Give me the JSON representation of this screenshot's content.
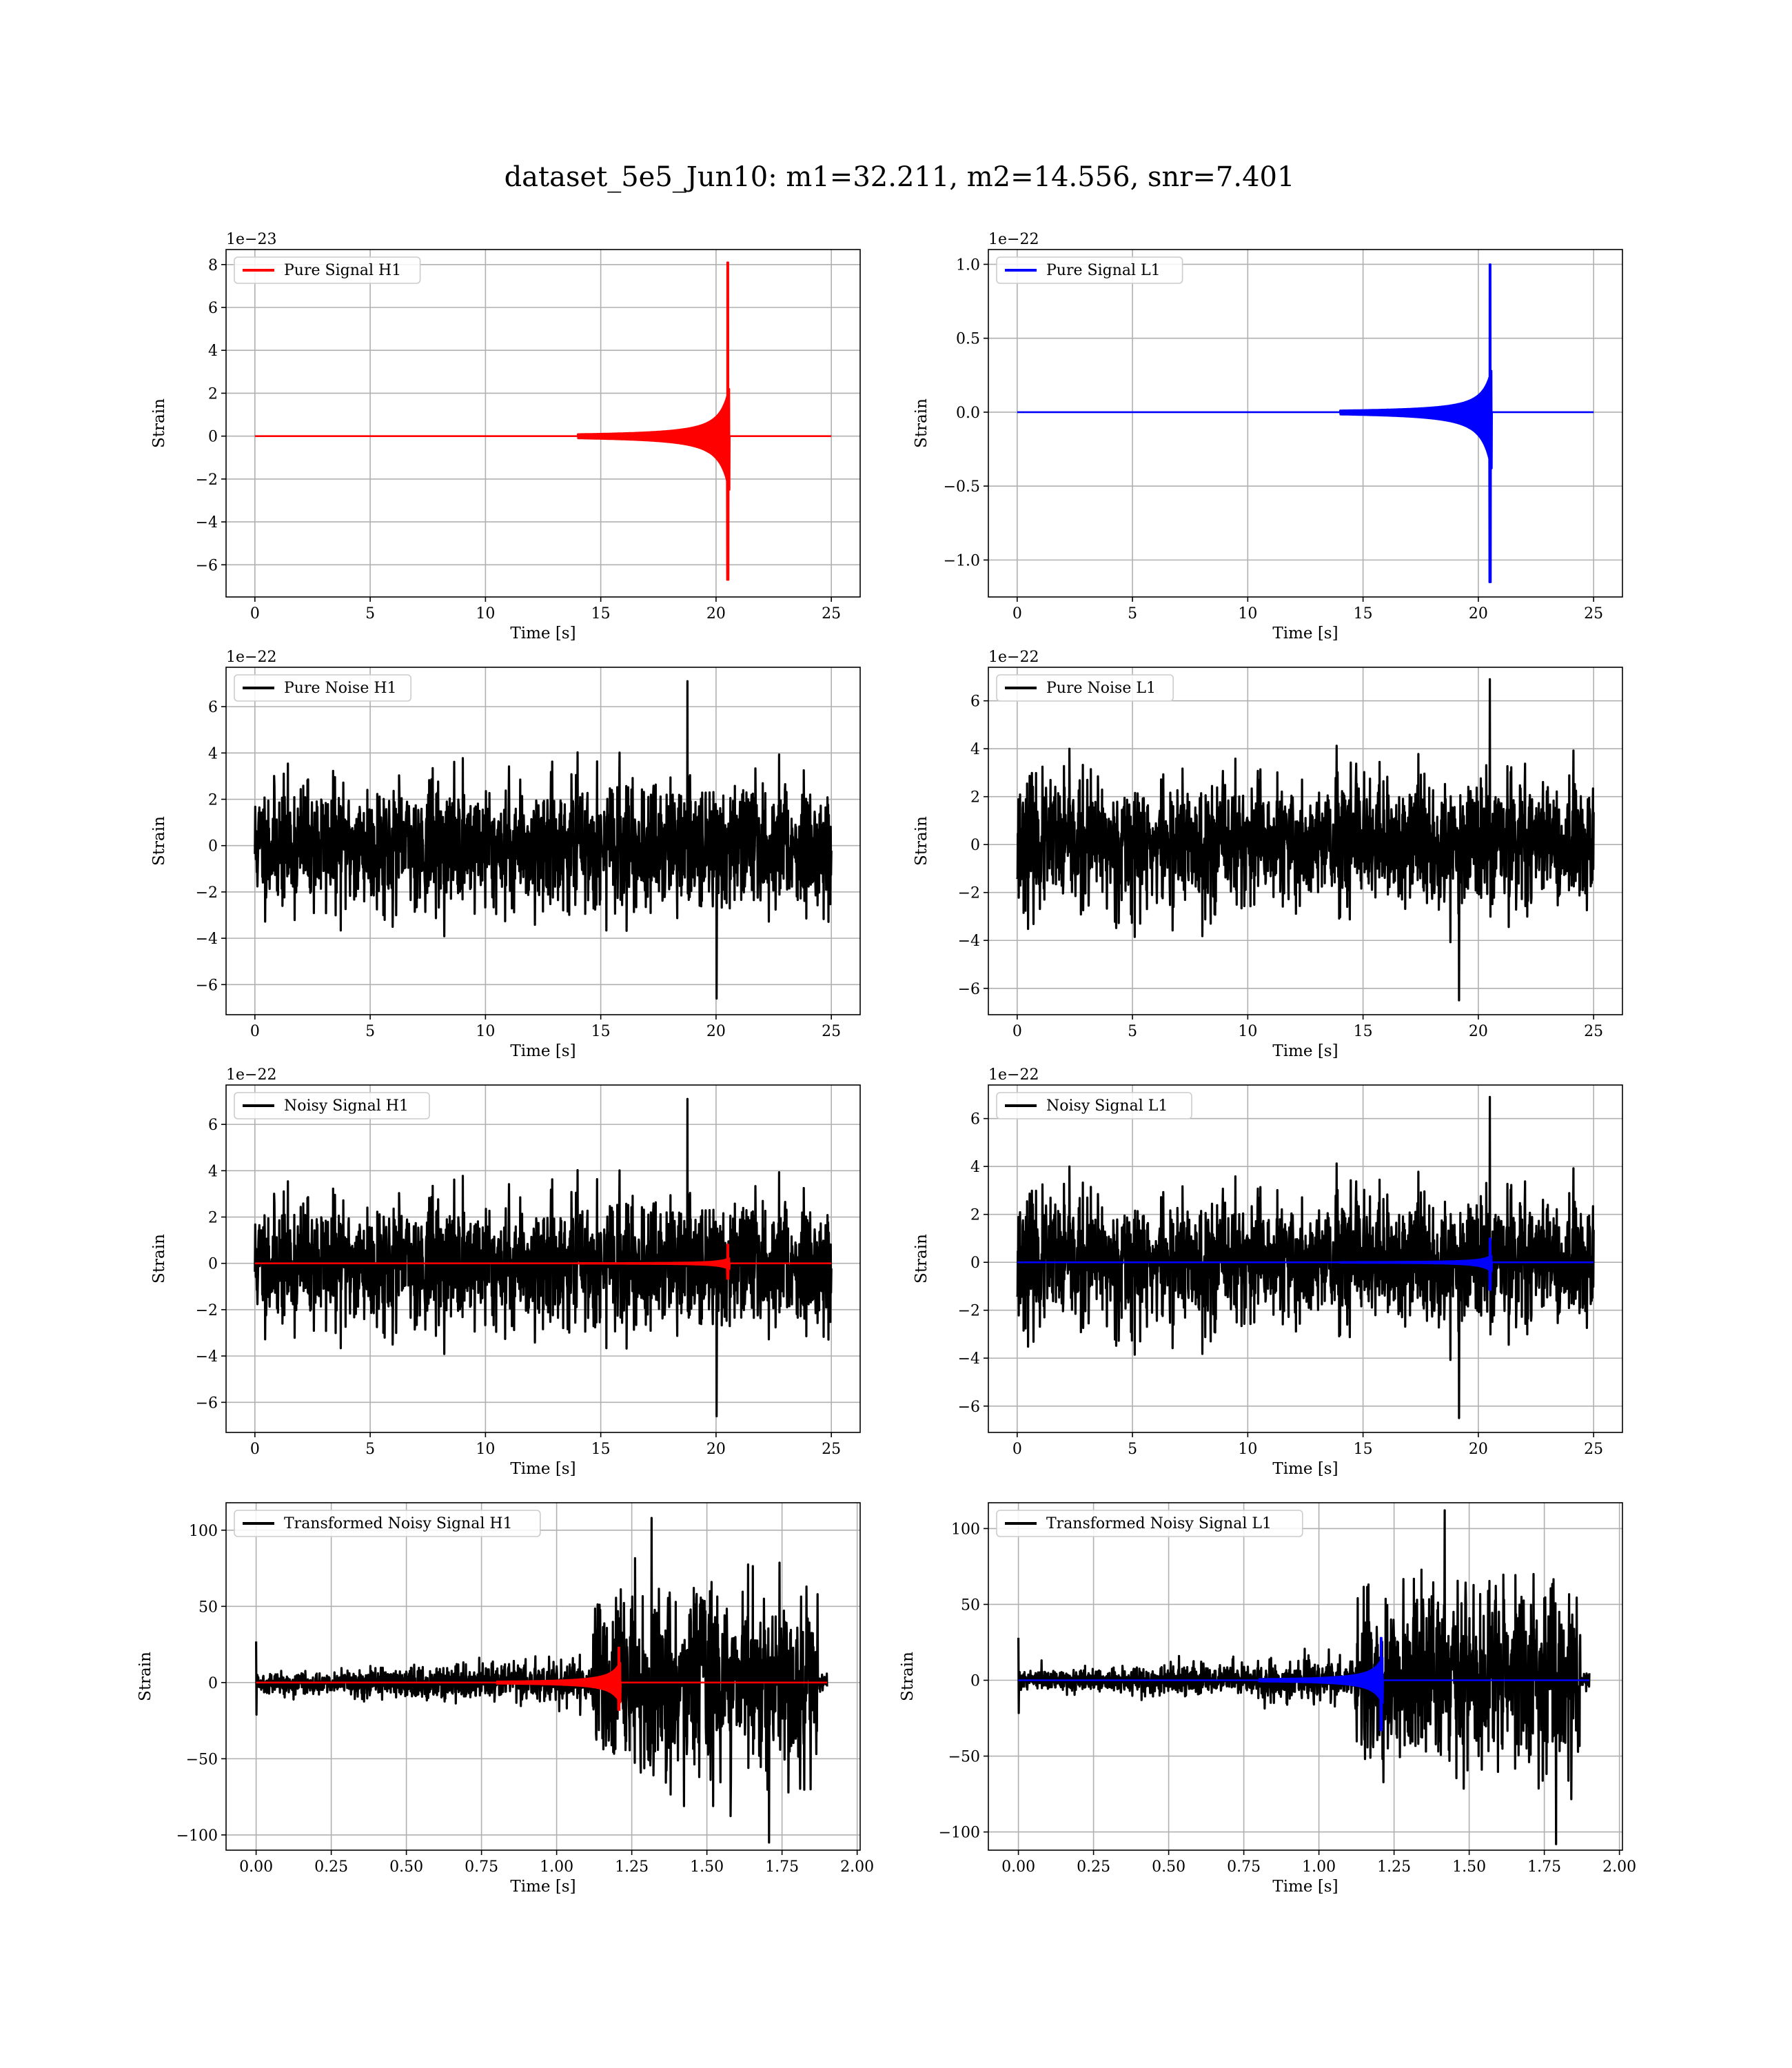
{
  "figure": {
    "suptitle": "dataset_5e5_Jun10: m1=32.211, m2=14.556, snr=7.401"
  },
  "colors": {
    "h1_signal": "#ff0000",
    "l1_signal": "#0000ff",
    "noise": "#000000",
    "grid": "#b0b0b0"
  },
  "chart_data": [
    {
      "id": "pure-signal-h1",
      "type": "line",
      "xlabel": "Time [s]",
      "ylabel": "Strain",
      "offset_text": "1e−23",
      "xlim": [
        -1.25,
        26.25
      ],
      "ylim": [
        -7.5,
        8.7
      ],
      "xticks": [
        0,
        5,
        10,
        15,
        20,
        25
      ],
      "xtick_labels": [
        "0",
        "5",
        "10",
        "15",
        "20",
        "25"
      ],
      "yticks": [
        -6,
        -4,
        -2,
        0,
        2,
        4,
        6,
        8
      ],
      "ytick_labels": [
        "−6",
        "−4",
        "−2",
        "0",
        "2",
        "4",
        "6",
        "8"
      ],
      "legend": {
        "placement": "upper-left",
        "entries": [
          {
            "name": "Pure Signal H1",
            "color": "#ff0000"
          }
        ]
      },
      "series": [
        {
          "name": "Pure Signal H1",
          "color": "#ff0000",
          "kind": "chirp",
          "x_range": [
            0,
            25
          ],
          "merger_time": 20.55,
          "envelope_pos": 2.2,
          "envelope_neg": -2.5,
          "peak_max": 8.1,
          "peak_min": -6.7,
          "visible_from": 14
        }
      ]
    },
    {
      "id": "pure-signal-l1",
      "type": "line",
      "xlabel": "Time [s]",
      "ylabel": "Strain",
      "offset_text": "1e−22",
      "xlim": [
        -1.25,
        26.25
      ],
      "ylim": [
        -1.25,
        1.1
      ],
      "xticks": [
        0,
        5,
        10,
        15,
        20,
        25
      ],
      "xtick_labels": [
        "0",
        "5",
        "10",
        "15",
        "20",
        "25"
      ],
      "yticks": [
        -1.0,
        -0.5,
        0.0,
        0.5,
        1.0
      ],
      "ytick_labels": [
        "−1.0",
        "−0.5",
        "0.0",
        "0.5",
        "1.0"
      ],
      "legend": {
        "placement": "upper-left",
        "entries": [
          {
            "name": "Pure Signal L1",
            "color": "#0000ff"
          }
        ]
      },
      "series": [
        {
          "name": "Pure Signal L1",
          "color": "#0000ff",
          "kind": "chirp",
          "x_range": [
            0,
            25
          ],
          "merger_time": 20.55,
          "envelope_pos": 0.28,
          "envelope_neg": -0.38,
          "peak_max": 1.0,
          "peak_min": -1.15,
          "visible_from": 14
        }
      ]
    },
    {
      "id": "pure-noise-h1",
      "type": "line",
      "xlabel": "Time [s]",
      "ylabel": "Strain",
      "offset_text": "1e−22",
      "xlim": [
        -1.25,
        26.25
      ],
      "ylim": [
        -7.3,
        7.7
      ],
      "xticks": [
        0,
        5,
        10,
        15,
        20,
        25
      ],
      "xtick_labels": [
        "0",
        "5",
        "10",
        "15",
        "20",
        "25"
      ],
      "yticks": [
        -6,
        -4,
        -2,
        0,
        2,
        4,
        6
      ],
      "ytick_labels": [
        "−6",
        "−4",
        "−2",
        "0",
        "2",
        "4",
        "6"
      ],
      "legend": {
        "placement": "upper-left",
        "entries": [
          {
            "name": "Pure Noise H1",
            "color": "#000000"
          }
        ]
      },
      "series": [
        {
          "name": "Pure Noise H1",
          "color": "#000000",
          "kind": "noise",
          "x_range": [
            0,
            25
          ],
          "sigma": 1.3,
          "max": 7.1,
          "min": -6.6,
          "seed": 11
        }
      ]
    },
    {
      "id": "pure-noise-l1",
      "type": "line",
      "xlabel": "Time [s]",
      "ylabel": "Strain",
      "offset_text": "1e−22",
      "xlim": [
        -1.25,
        26.25
      ],
      "ylim": [
        -7.1,
        7.4
      ],
      "xticks": [
        0,
        5,
        10,
        15,
        20,
        25
      ],
      "xtick_labels": [
        "0",
        "5",
        "10",
        "15",
        "20",
        "25"
      ],
      "yticks": [
        -6,
        -4,
        -2,
        0,
        2,
        4,
        6
      ],
      "ytick_labels": [
        "−6",
        "−4",
        "−2",
        "0",
        "2",
        "4",
        "6"
      ],
      "legend": {
        "placement": "upper-left",
        "entries": [
          {
            "name": "Pure Noise L1",
            "color": "#000000"
          }
        ]
      },
      "series": [
        {
          "name": "Pure Noise L1",
          "color": "#000000",
          "kind": "noise",
          "x_range": [
            0,
            25
          ],
          "sigma": 1.3,
          "max": 6.9,
          "min": -6.5,
          "seed": 23
        }
      ]
    },
    {
      "id": "noisy-signal-h1",
      "type": "line",
      "xlabel": "Time [s]",
      "ylabel": "Strain",
      "offset_text": "1e−22",
      "xlim": [
        -1.25,
        26.25
      ],
      "ylim": [
        -7.3,
        7.7
      ],
      "xticks": [
        0,
        5,
        10,
        15,
        20,
        25
      ],
      "xtick_labels": [
        "0",
        "5",
        "10",
        "15",
        "20",
        "25"
      ],
      "yticks": [
        -6,
        -4,
        -2,
        0,
        2,
        4,
        6
      ],
      "ytick_labels": [
        "−6",
        "−4",
        "−2",
        "0",
        "2",
        "4",
        "6"
      ],
      "legend": {
        "placement": "upper-left",
        "entries": [
          {
            "name": "Noisy Signal H1",
            "color": "#000000"
          }
        ]
      },
      "series": [
        {
          "name": "Noisy Signal H1",
          "color": "#000000",
          "kind": "noise",
          "x_range": [
            0,
            25
          ],
          "sigma": 1.3,
          "max": 7.1,
          "min": -6.6,
          "seed": 11
        },
        {
          "color": "#ff0000",
          "kind": "chirp",
          "x_range": [
            0,
            25
          ],
          "merger_time": 20.55,
          "envelope_pos": 0.22,
          "envelope_neg": -0.25,
          "peak_max": 0.81,
          "peak_min": -0.67,
          "visible_from": 14
        }
      ]
    },
    {
      "id": "noisy-signal-l1",
      "type": "line",
      "xlabel": "Time [s]",
      "ylabel": "Strain",
      "offset_text": "1e−22",
      "xlim": [
        -1.25,
        26.25
      ],
      "ylim": [
        -7.1,
        7.4
      ],
      "xticks": [
        0,
        5,
        10,
        15,
        20,
        25
      ],
      "xtick_labels": [
        "0",
        "5",
        "10",
        "15",
        "20",
        "25"
      ],
      "yticks": [
        -6,
        -4,
        -2,
        0,
        2,
        4,
        6
      ],
      "ytick_labels": [
        "−6",
        "−4",
        "−2",
        "0",
        "2",
        "4",
        "6"
      ],
      "legend": {
        "placement": "upper-left",
        "entries": [
          {
            "name": "Noisy Signal L1",
            "color": "#000000"
          }
        ]
      },
      "series": [
        {
          "name": "Noisy Signal L1",
          "color": "#000000",
          "kind": "noise",
          "x_range": [
            0,
            25
          ],
          "sigma": 1.3,
          "max": 6.9,
          "min": -6.5,
          "seed": 23
        },
        {
          "color": "#0000ff",
          "kind": "chirp",
          "x_range": [
            0,
            25
          ],
          "merger_time": 20.55,
          "envelope_pos": 0.28,
          "envelope_neg": -0.38,
          "peak_max": 1.0,
          "peak_min": -1.15,
          "visible_from": 14
        }
      ]
    },
    {
      "id": "transformed-noisy-signal-h1",
      "type": "line",
      "xlabel": "Time [s]",
      "ylabel": "Strain",
      "xlim": [
        -0.1,
        2.01
      ],
      "ylim": [
        -110,
        118
      ],
      "xticks": [
        0,
        0.25,
        0.5,
        0.75,
        1.0,
        1.25,
        1.5,
        1.75,
        2.0
      ],
      "xtick_labels": [
        "0.00",
        "0.25",
        "0.50",
        "0.75",
        "1.00",
        "1.25",
        "1.50",
        "1.75",
        "2.00"
      ],
      "yticks": [
        -100,
        -50,
        0,
        50,
        100
      ],
      "ytick_labels": [
        "−100",
        "−50",
        "0",
        "50",
        "100"
      ],
      "legend": {
        "placement": "upper-left",
        "entries": [
          {
            "name": "Transformed Noisy Signal H1",
            "color": "#000000"
          }
        ]
      },
      "series": [
        {
          "name": "Transformed Noisy Signal H1",
          "color": "#000000",
          "kind": "whitened",
          "x_range": [
            0,
            1.9
          ],
          "early_sigma": 3,
          "grow_sigma": 7,
          "step_time": 1.12,
          "late_sigma": 28,
          "cutoff": 1.87,
          "max": 108,
          "min": -105,
          "seed": 5
        },
        {
          "color": "#ff0000",
          "kind": "chirp",
          "x_range": [
            0,
            1.9
          ],
          "merger_time": 1.21,
          "envelope_pos": 13,
          "envelope_neg": -13,
          "peak_max": 23,
          "peak_min": -18,
          "visible_from": 0.8
        }
      ]
    },
    {
      "id": "transformed-noisy-signal-l1",
      "type": "line",
      "xlabel": "Time [s]",
      "ylabel": "Strain",
      "xlim": [
        -0.1,
        2.01
      ],
      "ylim": [
        -112,
        117
      ],
      "xticks": [
        0,
        0.25,
        0.5,
        0.75,
        1.0,
        1.25,
        1.5,
        1.75,
        2.0
      ],
      "xtick_labels": [
        "0.00",
        "0.25",
        "0.50",
        "0.75",
        "1.00",
        "1.25",
        "1.50",
        "1.75",
        "2.00"
      ],
      "yticks": [
        -100,
        -50,
        0,
        50,
        100
      ],
      "ytick_labels": [
        "−100",
        "−50",
        "0",
        "50",
        "100"
      ],
      "legend": {
        "placement": "upper-left",
        "entries": [
          {
            "name": "Transformed Noisy Signal L1",
            "color": "#000000"
          }
        ]
      },
      "series": [
        {
          "name": "Transformed Noisy Signal L1",
          "color": "#000000",
          "kind": "whitened",
          "x_range": [
            0,
            1.9
          ],
          "early_sigma": 3,
          "grow_sigma": 7,
          "step_time": 1.12,
          "late_sigma": 28,
          "cutoff": 1.87,
          "max": 112,
          "min": -108,
          "seed": 9
        },
        {
          "color": "#0000ff",
          "kind": "chirp",
          "x_range": [
            0,
            1.9
          ],
          "merger_time": 1.21,
          "envelope_pos": 15,
          "envelope_neg": -15,
          "peak_max": 28,
          "peak_min": -33,
          "visible_from": 0.8
        }
      ]
    }
  ]
}
